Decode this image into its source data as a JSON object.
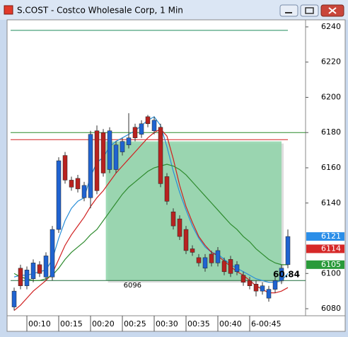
{
  "window": {
    "title": "S.COST - Costco Wholesale Corp, 1 Min"
  },
  "chart_data": {
    "type": "candlestick",
    "categories": [
      null,
      null,
      "00:10",
      null,
      null,
      null,
      null,
      "00:15",
      null,
      null,
      null,
      null,
      "00:20",
      null,
      null,
      null,
      null,
      "00:25",
      null,
      null,
      null,
      null,
      "00:30",
      null,
      null,
      null,
      null,
      "00:35",
      null,
      null,
      null,
      null,
      "00:40",
      null,
      null,
      null,
      null,
      "6-00:45",
      null,
      null,
      null,
      null,
      null,
      null
    ],
    "candles": {
      "open": [
        6081,
        6103,
        6093,
        6097,
        6105,
        6098,
        6098,
        6125,
        6167,
        6153,
        6154,
        6143,
        6143,
        6181,
        6180,
        6159,
        6159,
        6169,
        6173,
        6183,
        6179,
        6189,
        6181,
        6183,
        6155,
        6135,
        6131,
        6125,
        6114,
        6109,
        6103,
        6111,
        6106,
        6107,
        6108,
        6101,
        6099,
        6096,
        6094,
        6090,
        6086,
        6091,
        6096,
        6105
      ],
      "high": [
        6092,
        6105,
        6104,
        6108,
        6107,
        6112,
        6127,
        6166,
        6169,
        6155,
        6156,
        6152,
        6181,
        6184,
        6182,
        6183,
        6175,
        6177,
        6191,
        6185,
        6187,
        6190,
        6189,
        6185,
        6157,
        6137,
        6133,
        6127,
        6116,
        6111,
        6111,
        6113,
        6115,
        6109,
        6110,
        6107,
        6101,
        6098,
        6096,
        6095,
        6093,
        6098,
        6105,
        6125
      ],
      "low": [
        6079,
        6091,
        6091,
        6095,
        6098,
        6096,
        6096,
        6123,
        6151,
        6147,
        6146,
        6141,
        6137,
        6145,
        6155,
        6157,
        6157,
        6167,
        6171,
        6175,
        6177,
        6183,
        6179,
        6149,
        6139,
        6125,
        6119,
        6111,
        6110,
        6104,
        6101,
        6104,
        6104,
        6099,
        6098,
        6099,
        6093,
        6091,
        6087,
        6088,
        6084,
        6089,
        6094,
        6103
      ],
      "close": [
        6090,
        6093,
        6102,
        6106,
        6100,
        6110,
        6125,
        6164,
        6153,
        6149,
        6148,
        6150,
        6179,
        6147,
        6157,
        6181,
        6173,
        6175,
        6177,
        6177,
        6185,
        6185,
        6187,
        6151,
        6141,
        6127,
        6121,
        6113,
        6112,
        6106,
        6109,
        6106,
        6113,
        6101,
        6100,
        6105,
        6095,
        6093,
        6090,
        6093,
        6091,
        6096,
        6103,
        6121
      ],
      "up_color": "#1f63d1",
      "down_color": "#b8221f"
    },
    "lines": [
      {
        "color": "#2a8fd8",
        "values": [
          6098,
          6099,
          6099,
          6100,
          6101,
          6102,
          6108,
          6120,
          6130,
          6137,
          6141,
          6143,
          6155,
          6163,
          6166,
          6172,
          6175,
          6177,
          6179,
          6181,
          6184,
          6187,
          6189,
          6184,
          6172,
          6158,
          6146,
          6136,
          6127,
          6120,
          6115,
          6112,
          6111,
          6108,
          6105,
          6103,
          6101,
          6099,
          6097,
          6096,
          6095,
          6095,
          6096,
          6100
        ]
      },
      {
        "color": "#d02020",
        "values": [
          6079,
          6082,
          6086,
          6090,
          6093,
          6096,
          6100,
          6108,
          6116,
          6122,
          6127,
          6132,
          6138,
          6143,
          6147,
          6152,
          6157,
          6161,
          6165,
          6169,
          6173,
          6177,
          6180,
          6182,
          6178,
          6165,
          6150,
          6138,
          6129,
          6121,
          6116,
          6112,
          6110,
          6107,
          6104,
          6101,
          6099,
          6096,
          6093,
          6091,
          6089,
          6089,
          6090,
          6092
        ]
      },
      {
        "color": "#2e8b2e",
        "values": [
          6100,
          6098,
          6097,
          6096,
          6096,
          6097,
          6099,
          6103,
          6108,
          6112,
          6115,
          6118,
          6122,
          6125,
          6130,
          6135,
          6140,
          6145,
          6149,
          6152,
          6155,
          6158,
          6160,
          6161,
          6162,
          6161,
          6159,
          6156,
          6152,
          6148,
          6144,
          6140,
          6136,
          6132,
          6128,
          6125,
          6121,
          6118,
          6114,
          6111,
          6108,
          6106,
          6105,
          6105
        ]
      }
    ],
    "hlines": [
      {
        "value": 6238,
        "color": "#1e8a5a",
        "from": 0,
        "to": 43
      },
      {
        "value": 6180,
        "color": "#2a8a2a",
        "from": 0,
        "to": 46
      },
      {
        "value": 6176,
        "color": "#d42020",
        "from": 0,
        "to": 43
      },
      {
        "value": 6096,
        "color": "#1e6a3a",
        "from": 0,
        "to": 46
      }
    ],
    "zone": {
      "from": 14.4,
      "to": 42,
      "top": 6175,
      "bottom": 6096,
      "color": "#8ed4a8"
    },
    "annotations": [
      {
        "text": "6096",
        "color": "#2e7d32"
      },
      {
        "text": "60.84",
        "color": "#2e9a2e"
      }
    ],
    "price_labels": [
      {
        "value": 6121,
        "color": "#2b8ee8"
      },
      {
        "value": 6114,
        "color": "#d62828"
      },
      {
        "value": 6105,
        "color": "#2a9a3a"
      }
    ],
    "ylim": [
      6076,
      6244
    ],
    "yticks": [
      6240,
      6220,
      6200,
      6180,
      6160,
      6140,
      6100,
      6080
    ]
  }
}
